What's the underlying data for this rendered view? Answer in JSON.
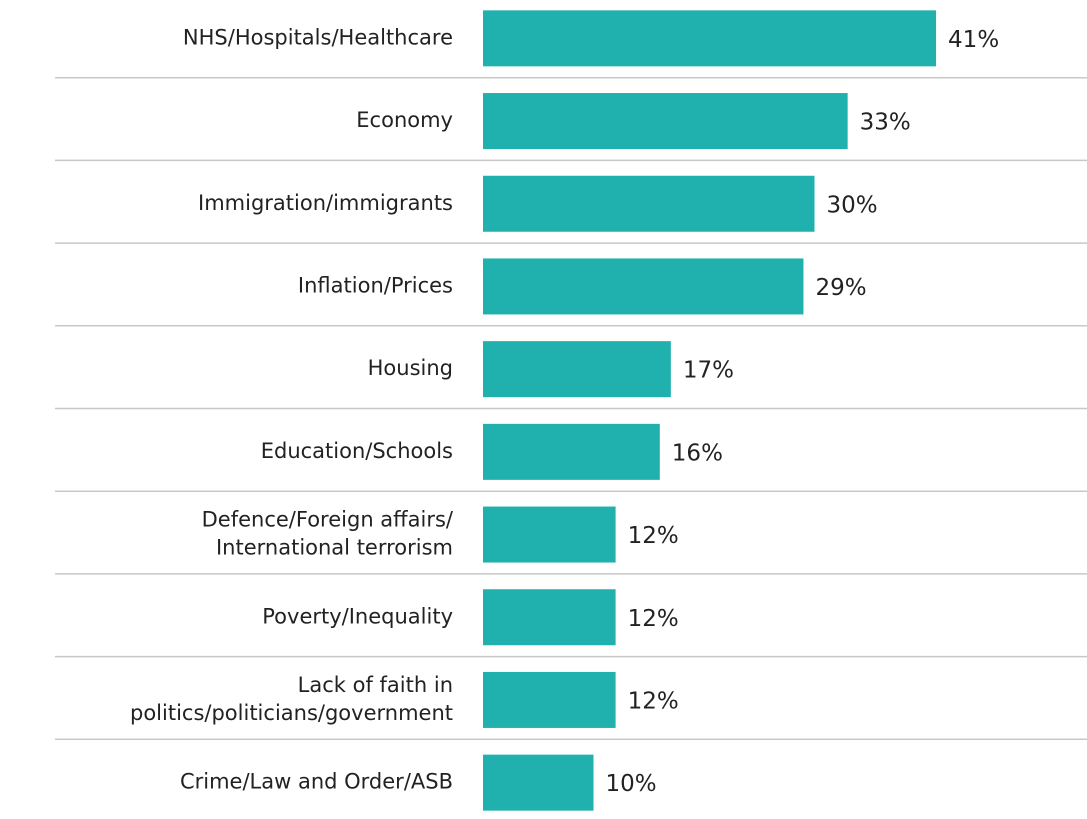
{
  "chart_data": {
    "type": "bar",
    "orientation": "horizontal",
    "categories": [
      "NHS/Hospitals/Healthcare",
      "Economy",
      "Immigration/immigrants",
      "Inflation/Prices",
      "Housing",
      "Education/Schools",
      "Defence/Foreign affairs/\nInternational terrorism",
      "Poverty/Inequality",
      "Lack of faith in\npolitics/politicians/government",
      "Crime/Law and Order/ASB"
    ],
    "values": [
      41,
      33,
      30,
      29,
      17,
      16,
      12,
      12,
      12,
      10
    ],
    "value_labels": [
      "41%",
      "33%",
      "30%",
      "29%",
      "17%",
      "16%",
      "12%",
      "12%",
      "12%",
      "10%"
    ],
    "color": "#20b1ae"
  }
}
